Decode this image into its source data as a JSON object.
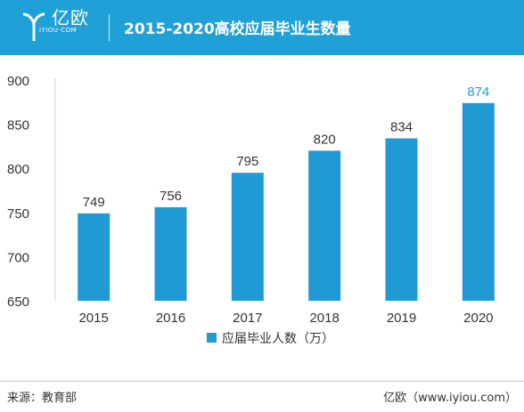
{
  "header": {
    "logo_text": "亿欧",
    "logo_sub": "IYIOU·COM",
    "title": "2015-2020高校应届毕业生数量"
  },
  "colors": {
    "accent": "#1fa0d6",
    "bar": "#1f9ad2",
    "highlight_label": "#1fa0d6"
  },
  "chart_data": {
    "type": "bar",
    "title": "2015-2020高校应届毕业生数量",
    "categories": [
      "2015",
      "2016",
      "2017",
      "2018",
      "2019",
      "2020"
    ],
    "series": [
      {
        "name": "应届毕业人数（万）",
        "values": [
          749,
          756,
          795,
          820,
          834,
          874
        ]
      }
    ],
    "ylim": [
      650,
      900
    ],
    "yticks": [
      650,
      700,
      750,
      800,
      850,
      900
    ],
    "grid": false,
    "legend": "bottom",
    "highlight_index": 5
  },
  "footer": {
    "source": "来源：教育部",
    "credit": "亿欧（www.iyiou.com）"
  }
}
